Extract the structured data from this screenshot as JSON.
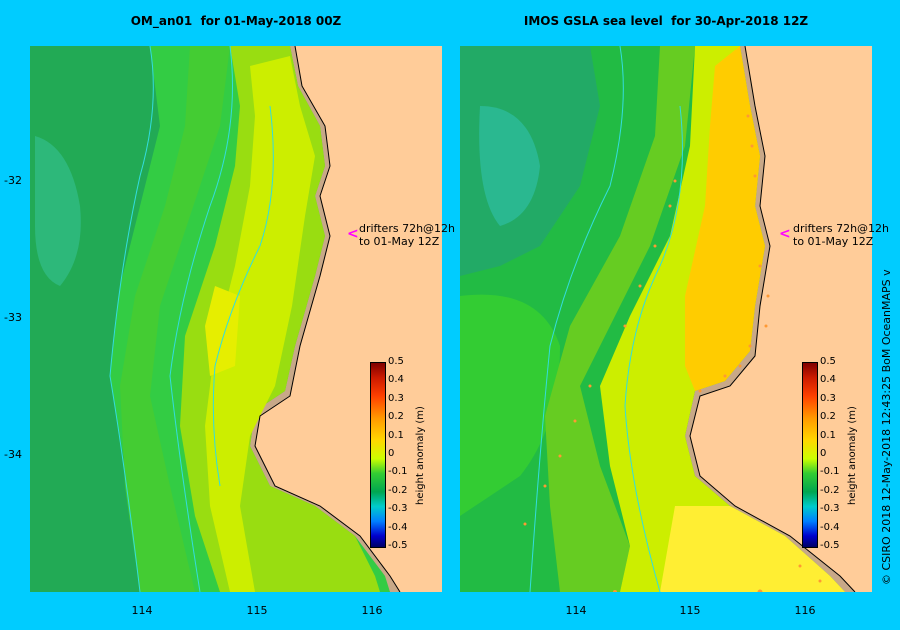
{
  "panels": [
    {
      "title": "OM_an01  for 01-May-2018 00Z",
      "drifter_label_1": "drifters 72h@12h",
      "drifter_label_2": "to 01-May 12Z"
    },
    {
      "title": "IMOS GSLA sea level  for 30-Apr-2018 12Z",
      "drifter_label_1": "drifters 72h@12h",
      "drifter_label_2": "to 01-May 12Z"
    }
  ],
  "y_ticks": [
    "-32",
    "-33",
    "-34"
  ],
  "x_ticks": [
    "114",
    "115",
    "116"
  ],
  "colorbar": {
    "label": "height anomaly (m)",
    "ticks": [
      "0.5",
      "0.4",
      "0.3",
      "0.2",
      "0.1",
      "0",
      "-0.1",
      "-0.2",
      "-0.3",
      "-0.4",
      "-0.5"
    ],
    "colors": [
      "#800000",
      "#ff4000",
      "#ffd700",
      "#ccff00",
      "#00a650",
      "#00cccc",
      "#0000cc",
      "#000066"
    ]
  },
  "credit": "© CSIRO 2018   12-May-2018 12:43:25 BoM OceanMAPS v"
}
